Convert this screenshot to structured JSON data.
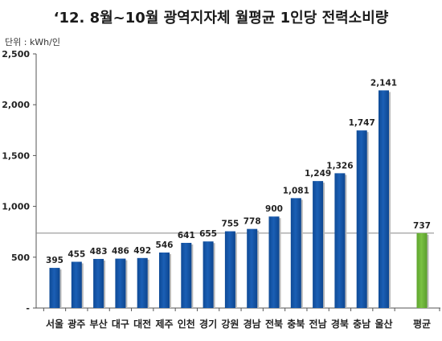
{
  "title": "‘12. 8월~10월 광역지자체 월평균 1인당 전력소비량",
  "unit_label": "단위 : kWh/인",
  "colors": {
    "bar": "#1b5fb5",
    "bar_average": "#7ac143",
    "reference_line": "#888888"
  },
  "chart_data": {
    "type": "bar",
    "title": "‘12. 8월~10월 광역지자체 월평균 1인당 전력소비량",
    "ylabel": "단위 : kWh/인",
    "xlabel": "",
    "categories": [
      "서울",
      "광주",
      "부산",
      "대구",
      "대전",
      "제주",
      "인천",
      "경기",
      "강원",
      "경남",
      "전북",
      "충북",
      "전남",
      "경북",
      "충남",
      "울산",
      "평균"
    ],
    "values": [
      395,
      455,
      483,
      486,
      492,
      546,
      641,
      655,
      755,
      778,
      900,
      1081,
      1249,
      1326,
      1747,
      2141,
      737
    ],
    "data_labels": [
      "395",
      "455",
      "483",
      "486",
      "492",
      "546",
      "641",
      "655",
      "755",
      "778",
      "900",
      "1,081",
      "1,249",
      "1,326",
      "1,747",
      "2,141",
      "737"
    ],
    "highlight_category": "평균",
    "reference_line_value": 737,
    "ylim": [
      0,
      2500
    ],
    "yticks": [
      0,
      500,
      1000,
      1500,
      2000,
      2500
    ],
    "ytick_labels": [
      "-",
      "500",
      "1,000",
      "1,500",
      "2,000",
      "2,500"
    ],
    "grid": false,
    "legend": "none"
  }
}
